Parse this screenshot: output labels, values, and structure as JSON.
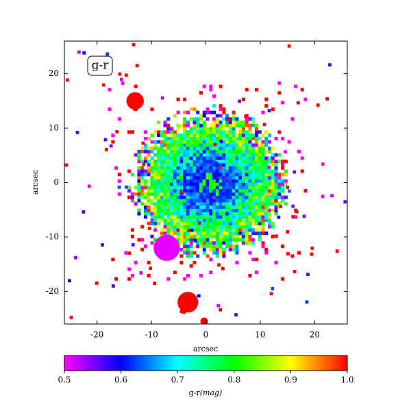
{
  "chart_data": {
    "type": "image",
    "annotation": "g-r",
    "xlabel": "arcsec",
    "ylabel": "arcsec",
    "xlim": [
      -26,
      26
    ],
    "ylim": [
      -26,
      26
    ],
    "xticks": [
      -20,
      -10,
      0,
      10,
      20
    ],
    "yticks": [
      -20,
      -10,
      0,
      10,
      20
    ],
    "colorbar": {
      "label": "g-r",
      "units": "(mag)",
      "lim": [
        0.5,
        1
      ],
      "ticks": [
        0.5,
        0.6,
        0.7,
        0.8,
        0.9,
        {
          "value": 1,
          "label": "1.0"
        }
      ],
      "colormap": [
        "#ff00ff",
        "#0000ff",
        "#00ffff",
        "#00ff00",
        "#ffff00",
        "#ff0000"
      ]
    }
  }
}
